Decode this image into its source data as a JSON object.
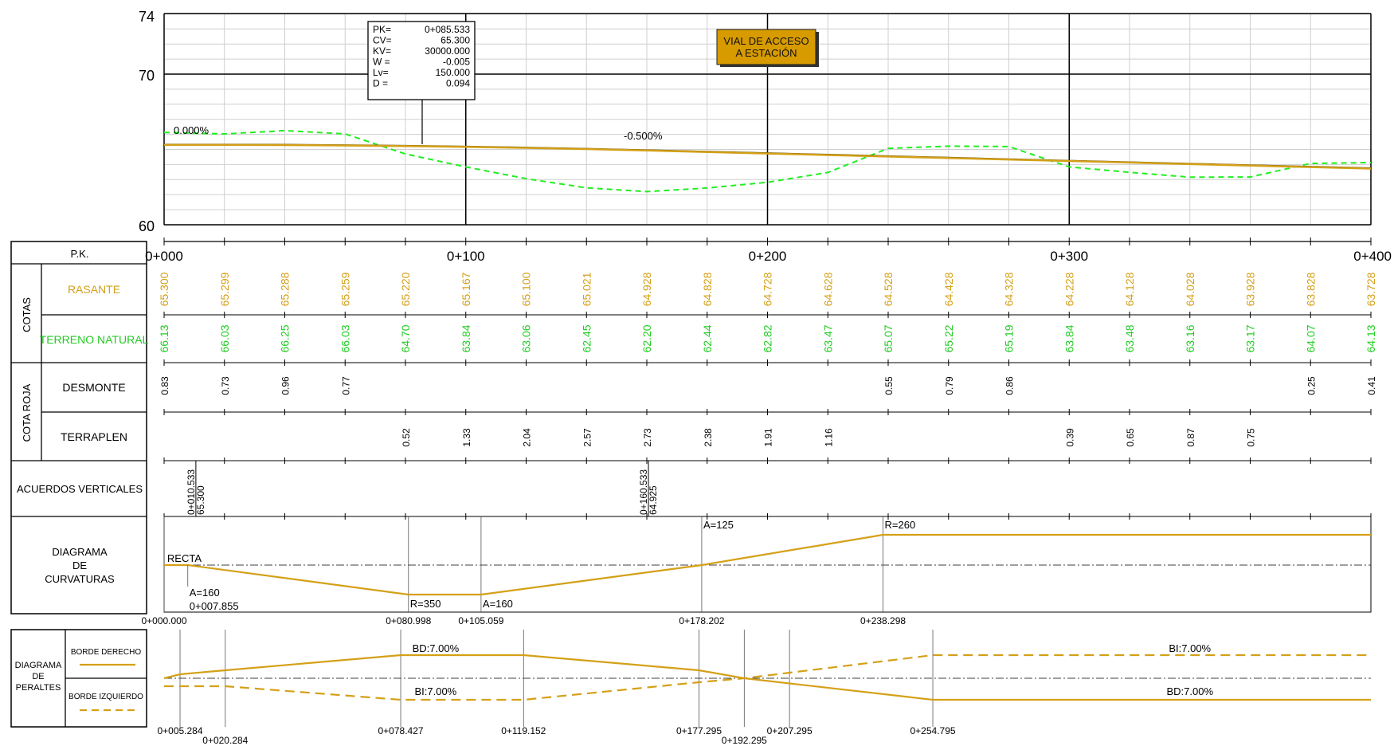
{
  "colors": {
    "rasante": "#d4a017",
    "terreno": "#22ee22",
    "grid_major": "#000000",
    "grid_minor": "#cfcfcf",
    "badge_bg": "#d79b00"
  },
  "profile": {
    "y_ticks": [
      "74",
      "70",
      "60"
    ],
    "x_ticks": [
      "0+000",
      "0+100",
      "0+200",
      "0+300",
      "0+400"
    ],
    "slope_labels": [
      "0.000%",
      "-0.500%"
    ],
    "badge": {
      "line1": "VIAL DE ACCESO",
      "line2": "A ESTACIÓN"
    },
    "info_box": [
      {
        "k": "PK=",
        "v": "0+085.533"
      },
      {
        "k": "CV=",
        "v": "65.300"
      },
      {
        "k": "KV=",
        "v": "30000.000"
      },
      {
        "k": "W =",
        "v": "-0.005"
      },
      {
        "k": "Lv=",
        "v": "150.000"
      },
      {
        "k": "D =",
        "v": "0.094"
      }
    ]
  },
  "table": {
    "pk_label": "P.K.",
    "cotas_label": "COTAS",
    "rasante_label": "RASANTE",
    "terreno_label": "TERRENO NATURAL",
    "cotaroja_label": "COTA ROJA",
    "desmonte_label": "DESMONTE",
    "terraplen_label": "TERRAPLEN",
    "acuerdos_label": "ACUERDOS VERTICALES",
    "curv_label": [
      "DIAGRAMA",
      "DE",
      "CURVATURAS"
    ],
    "peraltes_label": [
      "DIAGRAMA",
      "DE",
      "PERALTES"
    ],
    "borde_derecho": "BORDE DERECHO",
    "borde_izquierdo": "BORDE IZQUIERDO"
  },
  "rasante": [
    "65.300",
    "65.299",
    "65.288",
    "65.259",
    "65.220",
    "65.167",
    "65.100",
    "65.021",
    "64.928",
    "64.828",
    "64.728",
    "64.628",
    "64.528",
    "64.428",
    "64.328",
    "64.228",
    "64.128",
    "64.028",
    "63.928",
    "63.828",
    "63.728"
  ],
  "terreno": [
    "66.13",
    "66.03",
    "66.25",
    "66.03",
    "64.70",
    "63.84",
    "63.06",
    "62.45",
    "62.20",
    "62.44",
    "62.82",
    "63.47",
    "65.07",
    "65.22",
    "65.19",
    "63.84",
    "63.48",
    "63.16",
    "63.17",
    "64.07",
    "64.13"
  ],
  "desmonte": [
    {
      "i": 0,
      "v": "0.83"
    },
    {
      "i": 1,
      "v": "0.73"
    },
    {
      "i": 2,
      "v": "0.96"
    },
    {
      "i": 3,
      "v": "0.77"
    },
    {
      "i": 12,
      "v": "0.55"
    },
    {
      "i": 13,
      "v": "0.79"
    },
    {
      "i": 14,
      "v": "0.86"
    },
    {
      "i": 19,
      "v": "0.25"
    },
    {
      "i": 20,
      "v": "0.41"
    }
  ],
  "terraplen": [
    {
      "i": 4,
      "v": "0.52"
    },
    {
      "i": 5,
      "v": "1.33"
    },
    {
      "i": 6,
      "v": "2.04"
    },
    {
      "i": 7,
      "v": "2.57"
    },
    {
      "i": 8,
      "v": "2.73"
    },
    {
      "i": 9,
      "v": "2.38"
    },
    {
      "i": 10,
      "v": "1.91"
    },
    {
      "i": 11,
      "v": "1.16"
    },
    {
      "i": 15,
      "v": "0.39"
    },
    {
      "i": 16,
      "v": "0.65"
    },
    {
      "i": 17,
      "v": "0.87"
    },
    {
      "i": 18,
      "v": "0.75"
    }
  ],
  "acuerdos": [
    {
      "pk": 10.533,
      "l1": "0+010.533",
      "l2": "65.300"
    },
    {
      "pk": 160.533,
      "l1": "0+160.533",
      "l2": "64.925"
    }
  ],
  "curvaturas": {
    "pk_labels": [
      {
        "pk": 0,
        "t": "0+000.000"
      },
      {
        "pk": 80.998,
        "t": "0+080.998"
      },
      {
        "pk": 105.059,
        "t": "0+105.059"
      },
      {
        "pk": 178.202,
        "t": "0+178.202"
      },
      {
        "pk": 238.298,
        "t": "0+238.298"
      }
    ],
    "texts": [
      {
        "pk": 0.5,
        "dy": "top",
        "t": "RECTA"
      },
      {
        "pk": 7.855,
        "dy": "below",
        "t": "A=160"
      },
      {
        "pk": 7.855,
        "dy": "below2",
        "t": "0+007.855"
      },
      {
        "pk": 80.998,
        "dy": "bottom",
        "t": "R=350"
      },
      {
        "pk": 105.059,
        "dy": "bottom",
        "t": "A=160"
      },
      {
        "pk": 178.202,
        "dy": "top2",
        "t": "A=125"
      },
      {
        "pk": 238.298,
        "dy": "top2",
        "t": "R=260"
      }
    ]
  },
  "peraltes": {
    "pk_labels": [
      {
        "pk": 5.284,
        "t": "0+005.284",
        "row": 0
      },
      {
        "pk": 20.284,
        "t": "0+020.284",
        "row": 1
      },
      {
        "pk": 78.427,
        "t": "0+078.427",
        "row": 0
      },
      {
        "pk": 119.152,
        "t": "0+119.152",
        "row": 0
      },
      {
        "pk": 177.295,
        "t": "0+177.295",
        "row": 0
      },
      {
        "pk": 192.295,
        "t": "0+192.295",
        "row": 1
      },
      {
        "pk": 207.295,
        "t": "0+207.295",
        "row": 0
      },
      {
        "pk": 254.795,
        "t": "0+254.795",
        "row": 0
      }
    ],
    "texts": [
      {
        "pk": 90,
        "side": "up",
        "t": "BD:7.00%"
      },
      {
        "pk": 90,
        "side": "down",
        "t": "BI:7.00%"
      },
      {
        "pk": 340,
        "side": "up",
        "t": "BI:7.00%"
      },
      {
        "pk": 340,
        "side": "down",
        "t": "BD:7.00%"
      }
    ]
  }
}
